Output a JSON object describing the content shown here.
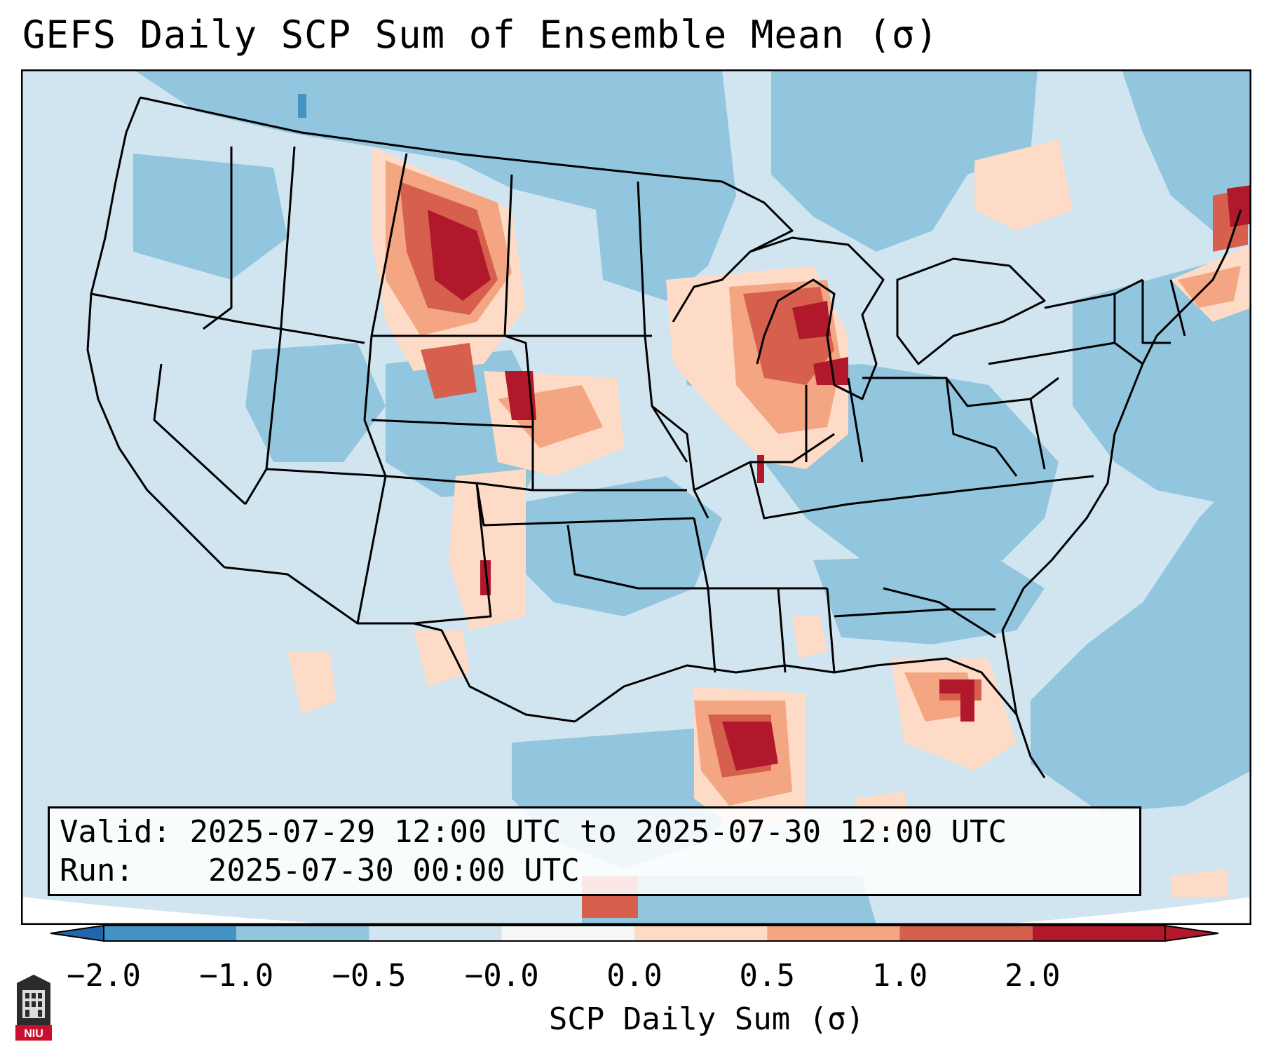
{
  "title": "GEFS Daily SCP Sum of Ensemble Mean (σ)",
  "map": {
    "region": "Continental United States",
    "background_fill": "light blue (below-normal)",
    "highlight_areas": [
      "Montana / Wyoming",
      "Wisconsin / Illinois",
      "Colorado / Nebraska border",
      "Texas / Louisiana Gulf coast",
      "Georgia / Florida",
      "New England"
    ]
  },
  "info": {
    "valid_label": "Valid:",
    "valid_value": "2025-07-29 12:00 UTC to 2025-07-30 12:00 UTC",
    "run_label": "Run:",
    "run_value": "2025-07-30 00:00 UTC"
  },
  "colorbar": {
    "label": "SCP Daily Sum (σ)",
    "ticks": [
      "−2.0",
      "−1.0",
      "−0.5",
      "−0.0",
      "0.0",
      "0.5",
      "1.0",
      "2.0"
    ],
    "colors": [
      "#4393c3",
      "#92c5de",
      "#d1e5f0",
      "#f7f7f7",
      "#fddbc7",
      "#f4a582",
      "#d6604d",
      "#b2182b"
    ],
    "extend_low_color": "#2166ac",
    "extend_high_color": "#b2182b"
  },
  "logo": {
    "text": "NIU"
  }
}
